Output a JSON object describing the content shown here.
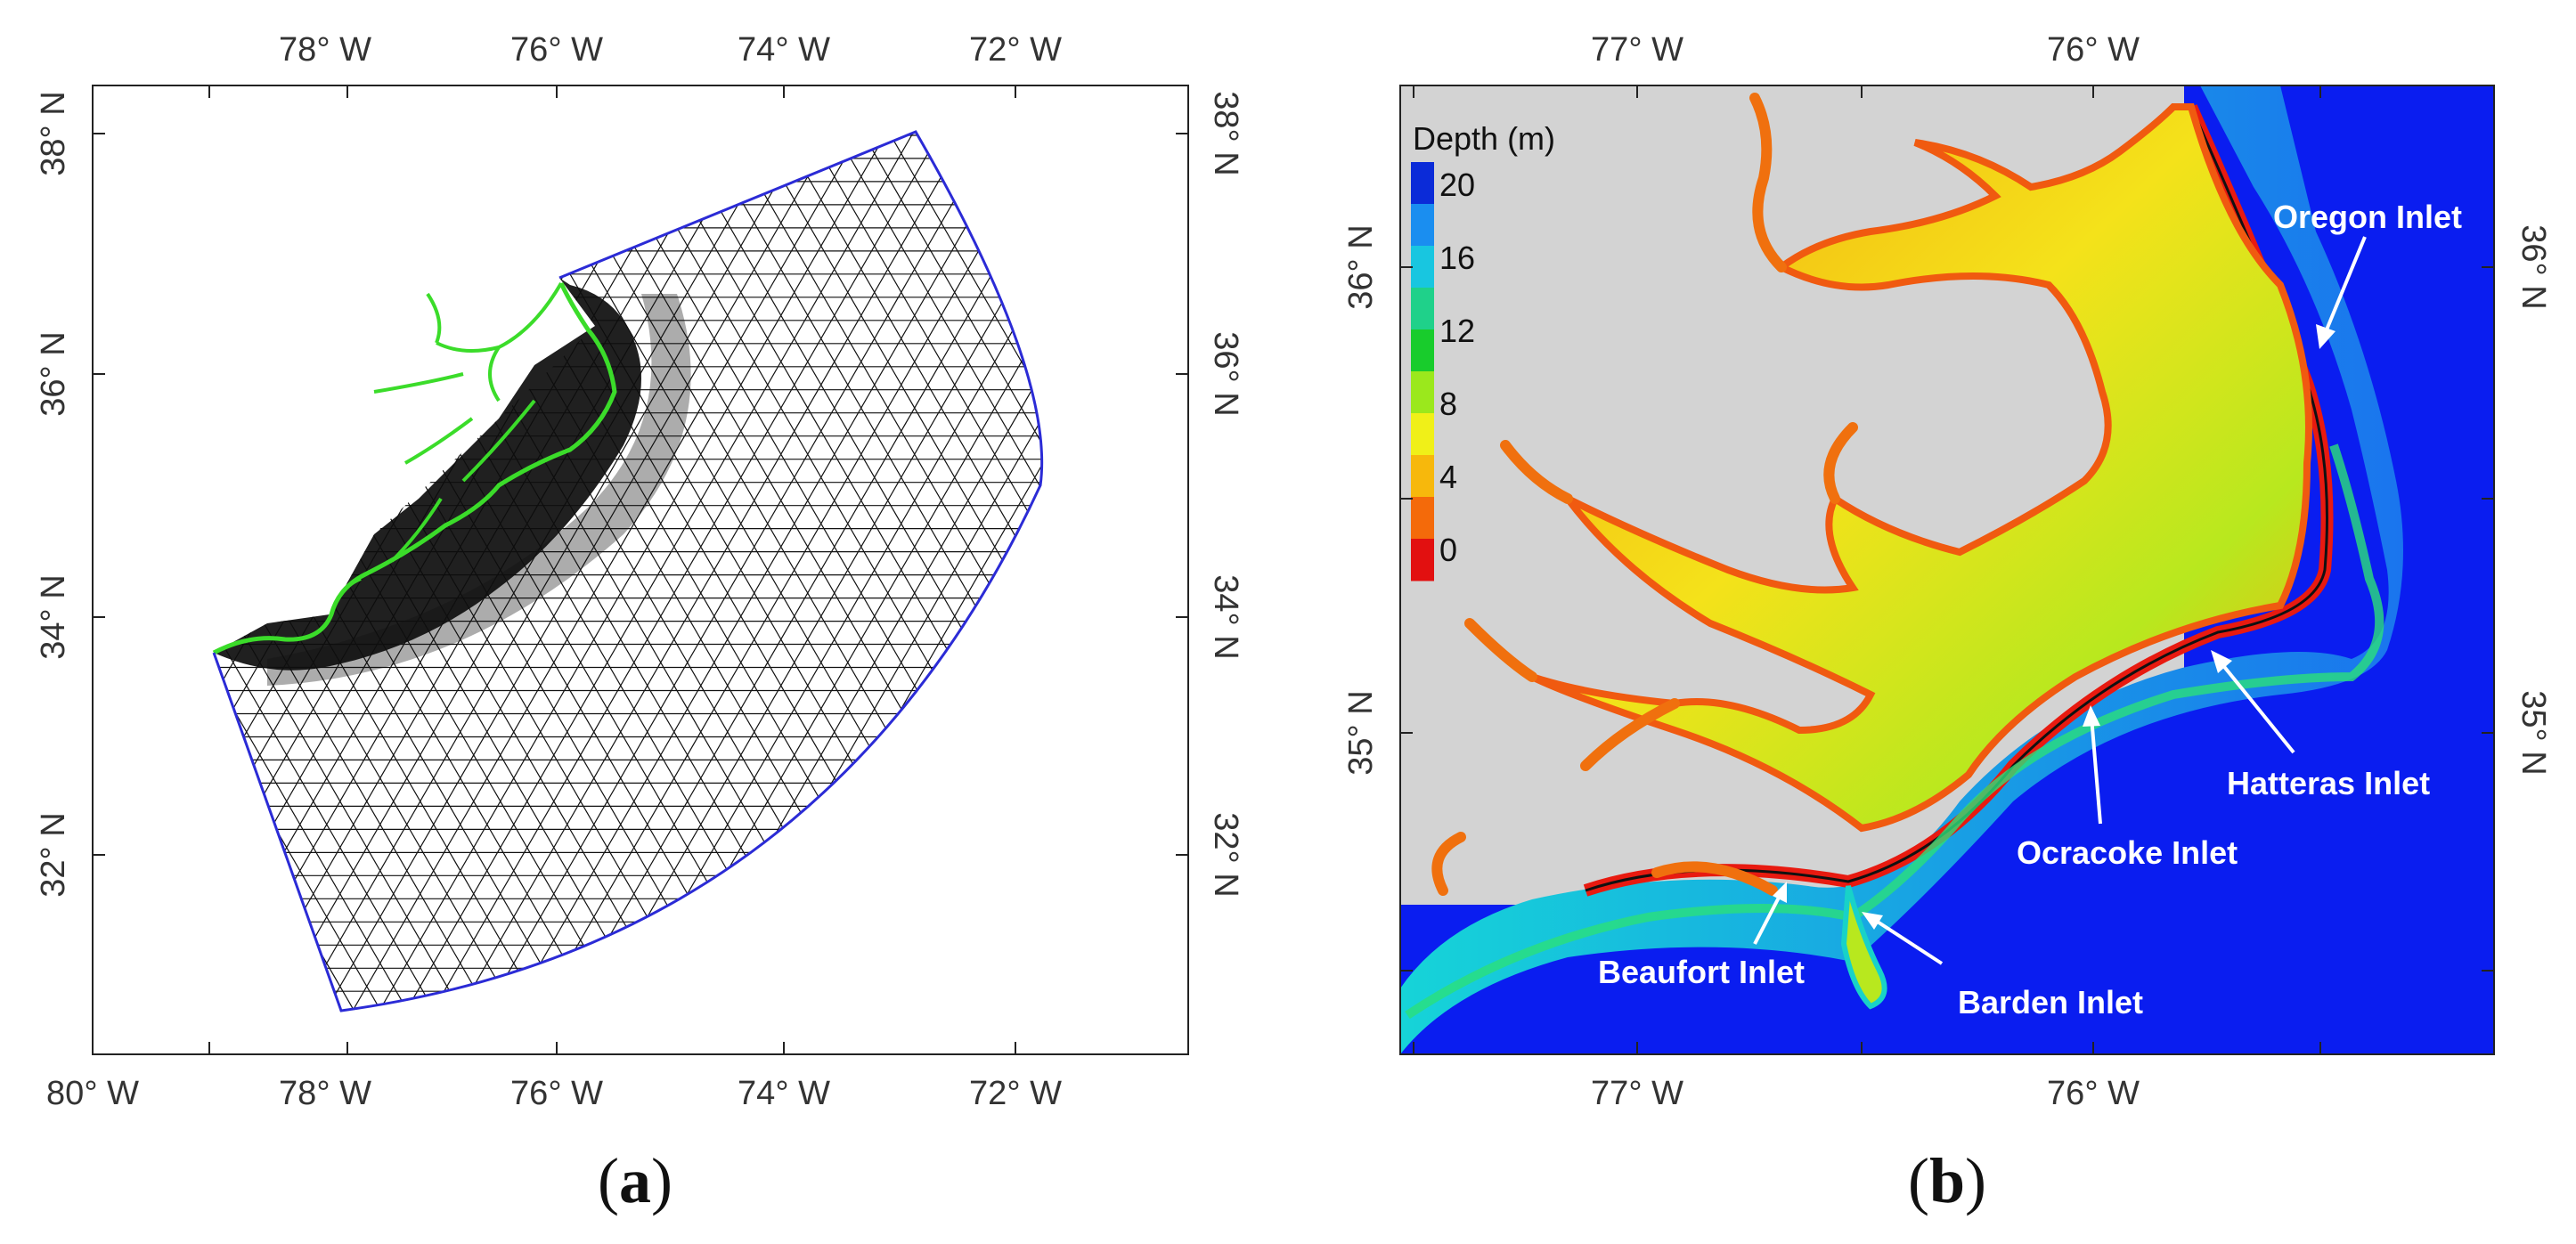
{
  "panels": {
    "a": {
      "label_paren_open": "(",
      "label_letter": "a",
      "label_paren_close": ")",
      "top_ticks": [
        "78° W",
        "76° W",
        "74° W",
        "72° W"
      ],
      "bottom_ticks": [
        "80° W",
        "78° W",
        "76° W",
        "74° W",
        "72° W"
      ],
      "left_ticks": [
        "38° N",
        "36° N",
        "34° N",
        "32° N"
      ],
      "right_ticks": [
        "38° N",
        "36° N",
        "34° N",
        "32° N"
      ],
      "colors": {
        "mesh": "#111111",
        "boundary": "#2b2bd6",
        "coastline": "#3bdc2a"
      }
    },
    "b": {
      "label_paren_open": "(",
      "label_letter": "b",
      "label_paren_close": ")",
      "top_ticks": [
        "77° W",
        "76° W"
      ],
      "bottom_ticks": [
        "77° W",
        "76° W"
      ],
      "left_ticks": [
        "36° N",
        "35° N"
      ],
      "right_ticks": [
        "36° N",
        "35° N"
      ],
      "legend": {
        "title": "Depth (m)",
        "ticks": [
          "20",
          "16",
          "12",
          "8",
          "4",
          "0"
        ],
        "colors": [
          "#0b2bd8",
          "#1a8ef0",
          "#18c6e0",
          "#1fd18a",
          "#18cc2c",
          "#9be81c",
          "#f0f018",
          "#f7b80c",
          "#f46a0a",
          "#e21010"
        ]
      },
      "inlets": [
        "Oregon Inlet",
        "Hatteras Inlet",
        "Ocracoke Inlet",
        "Beaufort Inlet",
        "Barden Inlet"
      ],
      "colors": {
        "land": "#d3d3d3",
        "ocean": "#0a1df0"
      }
    }
  }
}
